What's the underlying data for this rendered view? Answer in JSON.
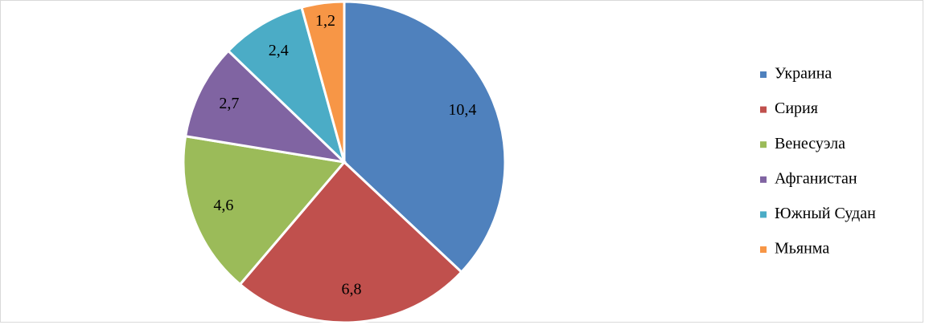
{
  "chart_data": {
    "type": "pie",
    "categories": [
      "Украина",
      "Сирия",
      "Венесуэла",
      "Афганистан",
      "Южный Судан",
      "Мьянма"
    ],
    "values": [
      10.4,
      6.8,
      4.6,
      2.7,
      2.4,
      1.2
    ],
    "value_labels": [
      "10,4",
      "6,8",
      "4,6",
      "2,7",
      "2,4",
      "1,2"
    ],
    "colors": [
      "#4f81bd",
      "#c0504d",
      "#9bbb59",
      "#8064a2",
      "#4bacc6",
      "#f79646"
    ],
    "legend": "right"
  }
}
